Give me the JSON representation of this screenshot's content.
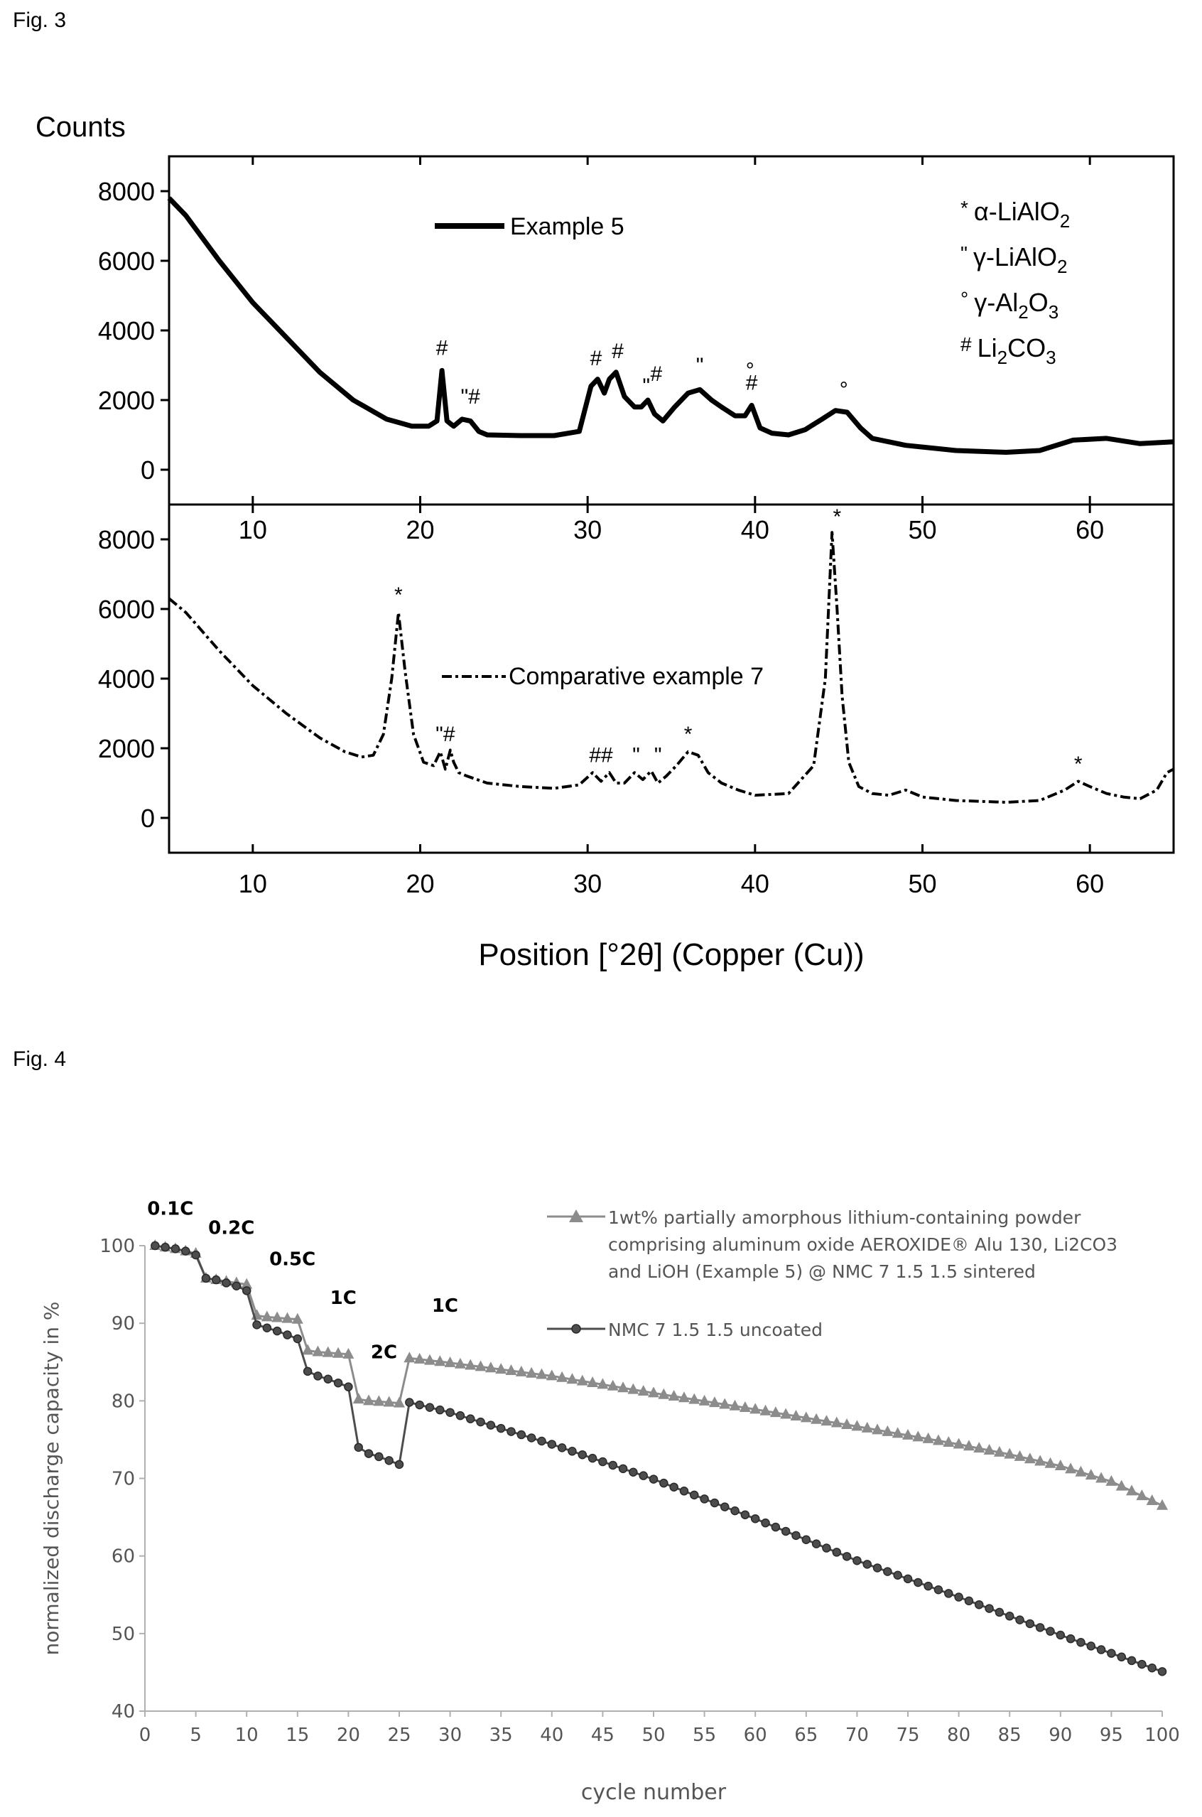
{
  "fig3_label": "Fig. 3",
  "fig4_label": "Fig. 4",
  "chart_data": [
    {
      "type": "line",
      "panel": "top",
      "ylabel": "Counts",
      "xlabel": "Position [°2θ] (Copper (Cu))",
      "xlim": [
        5,
        65
      ],
      "ylim": [
        -1000,
        9000
      ],
      "xticks": [
        10,
        20,
        30,
        40,
        50,
        60
      ],
      "yticks": [
        0,
        2000,
        4000,
        6000,
        8000
      ],
      "series": [
        {
          "name": "Example 5",
          "style": "solid",
          "x": [
            5,
            6,
            8,
            10,
            12,
            14,
            16,
            18,
            19.5,
            20.5,
            21.0,
            21.3,
            21.6,
            22.0,
            22.5,
            23.0,
            23.5,
            24,
            26,
            28,
            29.5,
            30.2,
            30.6,
            31.0,
            31.3,
            31.7,
            32.2,
            32.8,
            33.2,
            33.6,
            34.0,
            34.5,
            35.2,
            36.0,
            36.7,
            37.4,
            38.0,
            38.8,
            39.4,
            39.8,
            40.3,
            41.0,
            42.0,
            43.0,
            44.0,
            44.8,
            45.5,
            46.3,
            47.0,
            48.0,
            49.0,
            50.0,
            52.0,
            55.0,
            57.0,
            59.0,
            61.0,
            63.0,
            65.0
          ],
          "y": [
            7800,
            7300,
            6000,
            4800,
            3800,
            2800,
            2000,
            1450,
            1250,
            1250,
            1400,
            2850,
            1400,
            1250,
            1450,
            1400,
            1100,
            1000,
            980,
            980,
            1100,
            2400,
            2600,
            2200,
            2600,
            2800,
            2100,
            1800,
            1800,
            2000,
            1600,
            1400,
            1800,
            2200,
            2300,
            2000,
            1800,
            1550,
            1550,
            1850,
            1200,
            1050,
            1000,
            1150,
            1450,
            1700,
            1650,
            1200,
            900,
            800,
            700,
            650,
            550,
            500,
            550,
            850,
            900,
            750,
            800
          ]
        }
      ],
      "annotations": [
        {
          "text": "#",
          "x": 21.3,
          "y": 3300
        },
        {
          "text": "\"#",
          "x": 23.0,
          "y": 1900
        },
        {
          "text": "#",
          "x": 30.5,
          "y": 3000
        },
        {
          "text": "#",
          "x": 31.8,
          "y": 3200
        },
        {
          "text": "\"",
          "x": 33.5,
          "y": 2200
        },
        {
          "text": "#",
          "x": 34.1,
          "y": 2550
        },
        {
          "text": "\"",
          "x": 36.7,
          "y": 2800
        },
        {
          "text": "°",
          "x": 39.7,
          "y": 2650
        },
        {
          "text": "#",
          "x": 39.8,
          "y": 2300
        },
        {
          "text": "°",
          "x": 45.3,
          "y": 2100
        }
      ],
      "legend_text": [
        {
          "sym": "*",
          "pre": "α-LiAlO",
          "sub": "2",
          "post": ""
        },
        {
          "sym": "\"",
          "pre": "γ-LiAlO",
          "sub": "2",
          "post": ""
        },
        {
          "sym": "°",
          "pre": "γ-Al",
          "sub": "2",
          "post": "O",
          "sub2": "3"
        },
        {
          "sym": "#",
          "pre": "Li",
          "sub": "2",
          "post": "CO",
          "sub2": "3"
        }
      ]
    },
    {
      "type": "line",
      "panel": "bottom",
      "xlim": [
        5,
        65
      ],
      "ylim": [
        -1000,
        9000
      ],
      "xticks": [
        10,
        20,
        30,
        40,
        50,
        60
      ],
      "yticks": [
        0,
        2000,
        4000,
        6000,
        8000
      ],
      "series": [
        {
          "name": "Comparative example 7",
          "style": "dashdot",
          "x": [
            5,
            6,
            8,
            10,
            12,
            14,
            15.5,
            16.5,
            17.2,
            17.8,
            18.3,
            18.7,
            19.1,
            19.6,
            20.2,
            20.8,
            21.2,
            21.5,
            21.8,
            22.0,
            22.3,
            22.8,
            24,
            26,
            28,
            29.5,
            30.3,
            30.8,
            31.3,
            31.7,
            32.2,
            32.8,
            33.3,
            33.8,
            34.2,
            34.7,
            35.3,
            36.0,
            36.6,
            37.2,
            38.0,
            39.0,
            40.0,
            42.0,
            43.5,
            44.2,
            44.6,
            44.9,
            45.2,
            45.6,
            46.2,
            47.0,
            48.0,
            49.0,
            50.0,
            52.0,
            55.0,
            57.0,
            58.5,
            59.3,
            60.0,
            61.0,
            62.0,
            63.0,
            64.0,
            64.6,
            65.0
          ],
          "y": [
            6300,
            5900,
            4800,
            3800,
            3000,
            2300,
            1900,
            1750,
            1800,
            2400,
            4000,
            5900,
            4200,
            2400,
            1600,
            1500,
            1900,
            1400,
            1950,
            1600,
            1300,
            1200,
            1000,
            900,
            850,
            950,
            1300,
            1050,
            1300,
            1000,
            1000,
            1300,
            1100,
            1350,
            1000,
            1200,
            1500,
            1900,
            1800,
            1300,
            1000,
            800,
            650,
            700,
            1500,
            4000,
            8200,
            6000,
            3500,
            1600,
            900,
            700,
            650,
            800,
            600,
            500,
            450,
            500,
            800,
            1050,
            900,
            700,
            600,
            550,
            800,
            1300,
            1400
          ]
        }
      ],
      "annotations": [
        {
          "text": "*",
          "x": 18.7,
          "y": 6200
        },
        {
          "text": "\"#",
          "x": 21.5,
          "y": 2200
        },
        {
          "text": "##",
          "x": 30.8,
          "y": 1600
        },
        {
          "text": "\"",
          "x": 32.9,
          "y": 1600
        },
        {
          "text": "\"",
          "x": 34.2,
          "y": 1600
        },
        {
          "text": "*",
          "x": 36.0,
          "y": 2200
        },
        {
          "text": "*",
          "x": 44.9,
          "y": 8450
        },
        {
          "text": "*",
          "x": 59.3,
          "y": 1350
        }
      ]
    },
    {
      "type": "line",
      "xlabel": "cycle number",
      "ylabel": "normalized discharge capacity in %",
      "xlim": [
        0,
        100
      ],
      "ylim": [
        40,
        100
      ],
      "xticks": [
        0,
        5,
        10,
        15,
        20,
        25,
        30,
        35,
        40,
        45,
        50,
        55,
        60,
        65,
        70,
        75,
        80,
        85,
        90,
        95,
        100
      ],
      "yticks": [
        40,
        50,
        60,
        70,
        80,
        90,
        100
      ],
      "rate_labels": [
        {
          "text": "0.1C",
          "x": 2.5,
          "y": 104
        },
        {
          "text": "0.2C",
          "x": 8.5,
          "y": 101.5
        },
        {
          "text": "0.5C",
          "x": 14.5,
          "y": 97.5
        },
        {
          "text": "1C",
          "x": 19.5,
          "y": 92.5
        },
        {
          "text": "2C",
          "x": 23.5,
          "y": 85.5
        },
        {
          "text": "1C",
          "x": 29.5,
          "y": 91.5
        }
      ],
      "series": [
        {
          "name": "1wt% partially amorphous lithium-containing powder comprising aluminum oxide AEROXIDE® Alu 130, Li2CO3 and LiOH (Example 5) @ NMC 7 1.5 1.5 sintered",
          "legend_lines": [
            "1wt% partially amorphous lithium-containing powder",
            "comprising aluminum oxide AEROXIDE® Alu 130, Li2CO3",
            "and LiOH (Example 5) @ NMC 7 1.5 1.5 sintered"
          ],
          "marker": "triangle",
          "color": "#8c8c8c",
          "x": [
            1,
            2,
            3,
            4,
            5,
            6,
            7,
            8,
            9,
            10,
            11,
            12,
            13,
            14,
            15,
            16,
            17,
            18,
            19,
            20,
            21,
            22,
            23,
            24,
            25,
            26,
            30,
            40,
            50,
            60,
            70,
            80,
            85,
            90,
            95,
            100
          ],
          "y": [
            100,
            99.8,
            99.6,
            99.3,
            99,
            95.8,
            95.6,
            95.4,
            95.2,
            95,
            91,
            90.8,
            90.7,
            90.6,
            90.5,
            86.5,
            86.3,
            86.2,
            86.1,
            86,
            80.2,
            80,
            79.9,
            79.8,
            79.7,
            85.5,
            84.9,
            83.2,
            81,
            78.9,
            76.7,
            74.4,
            73.1,
            71.6,
            69.6,
            66.5
          ]
        },
        {
          "name": "NMC 7 1.5 1.5 uncoated",
          "legend_lines": [
            "NMC 7 1.5 1.5 uncoated"
          ],
          "marker": "circle",
          "color": "#4d4d4d",
          "x": [
            1,
            2,
            3,
            4,
            5,
            6,
            7,
            8,
            9,
            10,
            11,
            12,
            13,
            14,
            15,
            16,
            17,
            18,
            19,
            20,
            21,
            22,
            23,
            24,
            25,
            26,
            30,
            40,
            50,
            60,
            70,
            80,
            90,
            100
          ],
          "y": [
            100,
            99.8,
            99.6,
            99.3,
            98.8,
            95.8,
            95.6,
            95.2,
            94.8,
            94.2,
            89.8,
            89.4,
            89,
            88.5,
            88,
            83.8,
            83.2,
            82.8,
            82.3,
            81.8,
            74,
            73.2,
            72.8,
            72.3,
            71.8,
            79.8,
            78.5,
            74.4,
            69.9,
            64.8,
            59.4,
            54.7,
            49.8,
            45.1
          ]
        }
      ]
    }
  ]
}
